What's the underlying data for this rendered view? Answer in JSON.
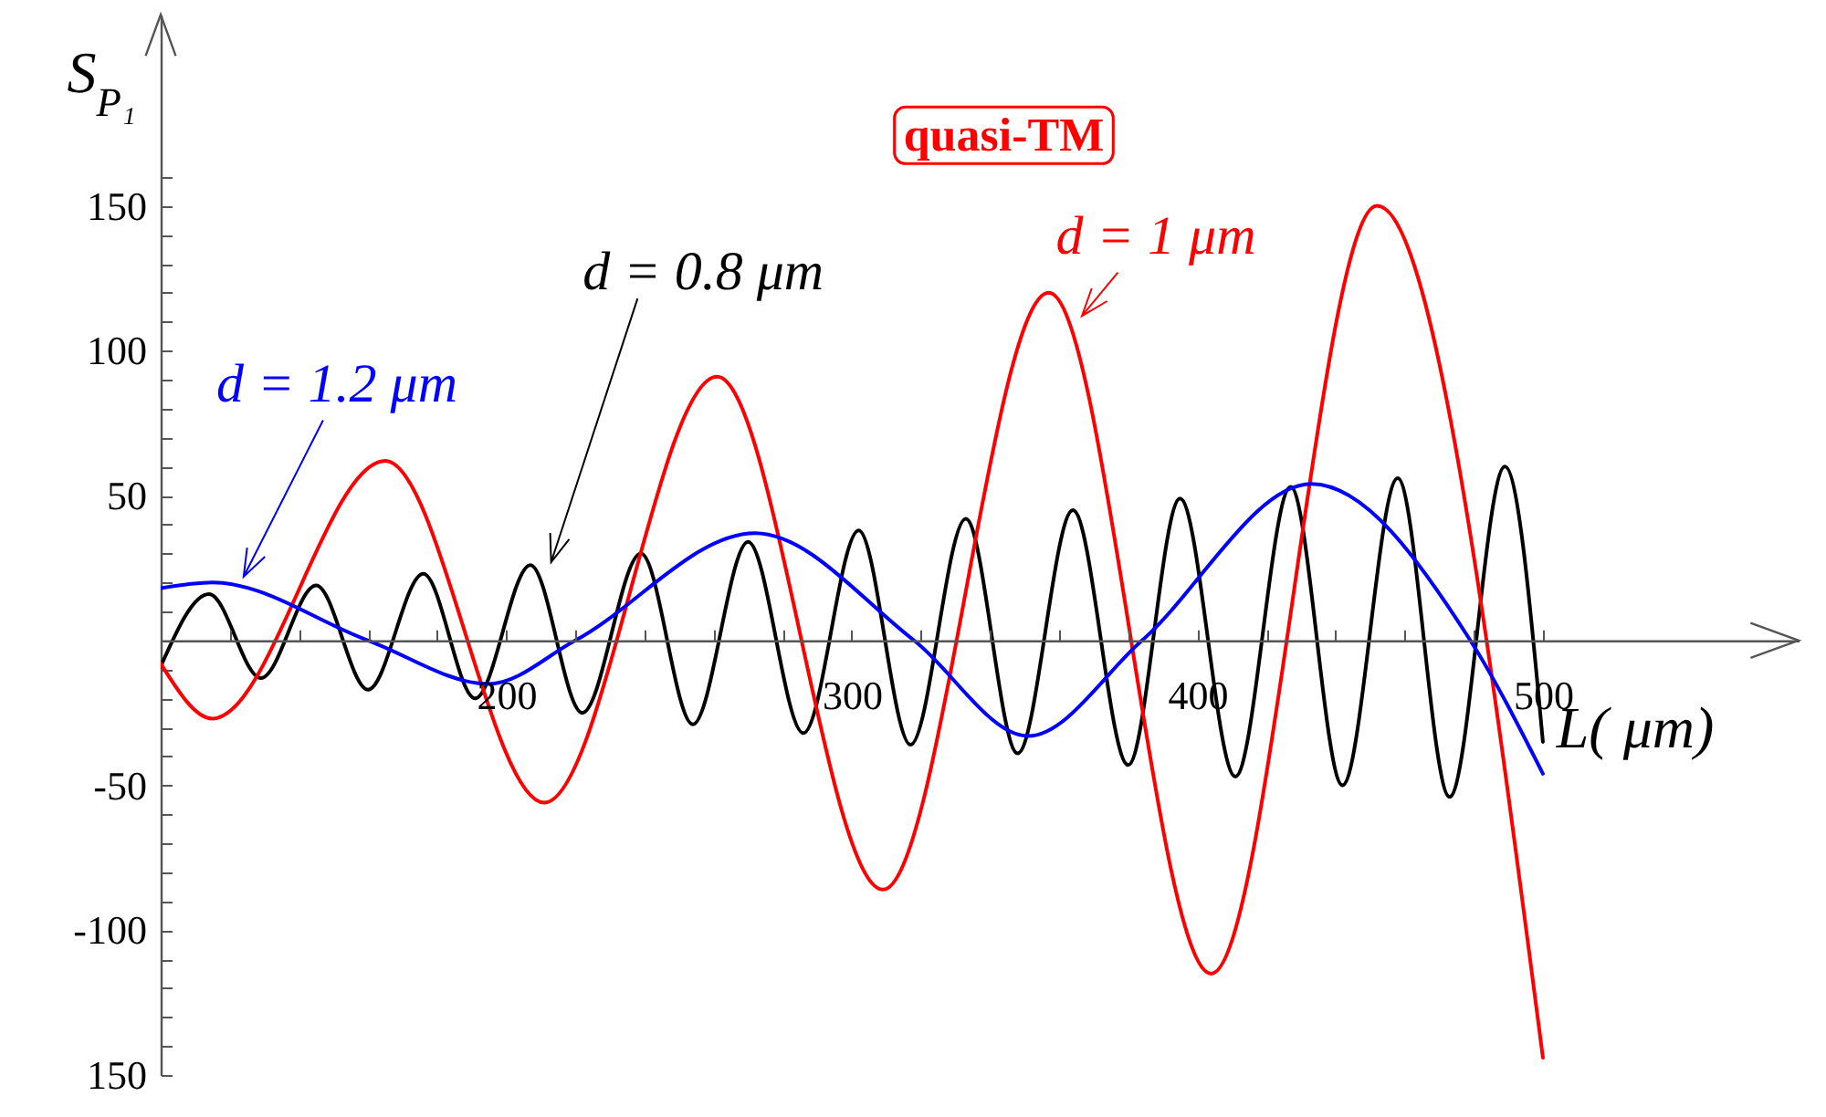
{
  "chart_data": {
    "type": "line",
    "xlabel": "L( μm)",
    "ylabel": "S$_{P₁}$",
    "xlim": [
      100,
      574
    ],
    "ylim": [
      -150,
      216
    ],
    "xticks": [
      {
        "value": 120,
        "label": null
      },
      {
        "value": 140,
        "label": null
      },
      {
        "value": 160,
        "label": null
      },
      {
        "value": 180,
        "label": null
      },
      200,
      {
        "value": 220,
        "label": null
      },
      {
        "value": 240,
        "label": null
      },
      {
        "value": 260,
        "label": null
      },
      {
        "value": 280,
        "label": null
      },
      300,
      {
        "value": 320,
        "label": null
      },
      {
        "value": 340,
        "label": null
      },
      {
        "value": 360,
        "label": null
      },
      {
        "value": 380,
        "label": null
      },
      400,
      {
        "value": 420,
        "label": null
      },
      {
        "value": 440,
        "label": null
      },
      {
        "value": 460,
        "label": null
      },
      {
        "value": 480,
        "label": null
      },
      500
    ],
    "yticks": [
      {
        "value": -150,
        "label": "150"
      },
      {
        "value": -140,
        "label": null
      },
      {
        "value": -130,
        "label": null
      },
      {
        "value": -120,
        "label": null
      },
      {
        "value": -110,
        "label": null
      },
      -100,
      {
        "value": -90,
        "label": null
      },
      {
        "value": -80,
        "label": null
      },
      {
        "value": -70,
        "label": null
      },
      {
        "value": -60,
        "label": null
      },
      -50,
      {
        "value": -40,
        "label": null
      },
      {
        "value": -30,
        "label": null
      },
      {
        "value": -20,
        "label": null
      },
      {
        "value": -10,
        "label": null
      },
      {
        "value": 10,
        "label": null
      },
      {
        "value": 20,
        "label": null
      },
      {
        "value": 30,
        "label": null
      },
      {
        "value": 40,
        "label": null
      },
      50,
      {
        "value": 60,
        "label": null
      },
      {
        "value": 70,
        "label": null
      },
      {
        "value": 80,
        "label": null
      },
      {
        "value": 90,
        "label": null
      },
      100,
      {
        "value": 110,
        "label": null
      },
      {
        "value": 120,
        "label": null
      },
      {
        "value": 130,
        "label": null
      },
      {
        "value": 140,
        "label": null
      },
      150,
      {
        "value": 160,
        "label": null
      }
    ],
    "series": [
      {
        "name": "d = 0.8 μm",
        "color": "#000000",
        "x": [
          100,
          114,
          129,
          145,
          160,
          176,
          191,
          207,
          222,
          239,
          254,
          270,
          286,
          302,
          317,
          333,
          348,
          364,
          380,
          395,
          411,
          427,
          442,
          458,
          473,
          489,
          500
        ],
        "values": [
          -9,
          16,
          -13,
          19,
          -17,
          23,
          -20,
          26,
          -25,
          30,
          -29,
          34,
          -32,
          38,
          -36,
          42,
          -39,
          45,
          -43,
          49,
          -47,
          53,
          -50,
          56,
          -54,
          60,
          -35
        ]
      },
      {
        "name": "d = 1 μm",
        "color": "#ff0000",
        "x": [
          100,
          115,
          165,
          211,
          261,
          309,
          357,
          404,
          452,
          500
        ],
        "values": [
          -8,
          -27,
          62,
          -56,
          91,
          -86,
          120,
          -115,
          150,
          -144
        ]
      },
      {
        "name": "d = 1.2 μm",
        "color": "#0000ff",
        "x": [
          100,
          115,
          160,
          195,
          220,
          272,
          318,
          351,
          384,
          433,
          479,
          500
        ],
        "values": [
          18,
          20,
          0,
          -15,
          0,
          37,
          0,
          -33,
          0,
          54,
          0,
          -46
        ]
      }
    ],
    "annotations": [
      "quasi-TM"
    ]
  }
}
